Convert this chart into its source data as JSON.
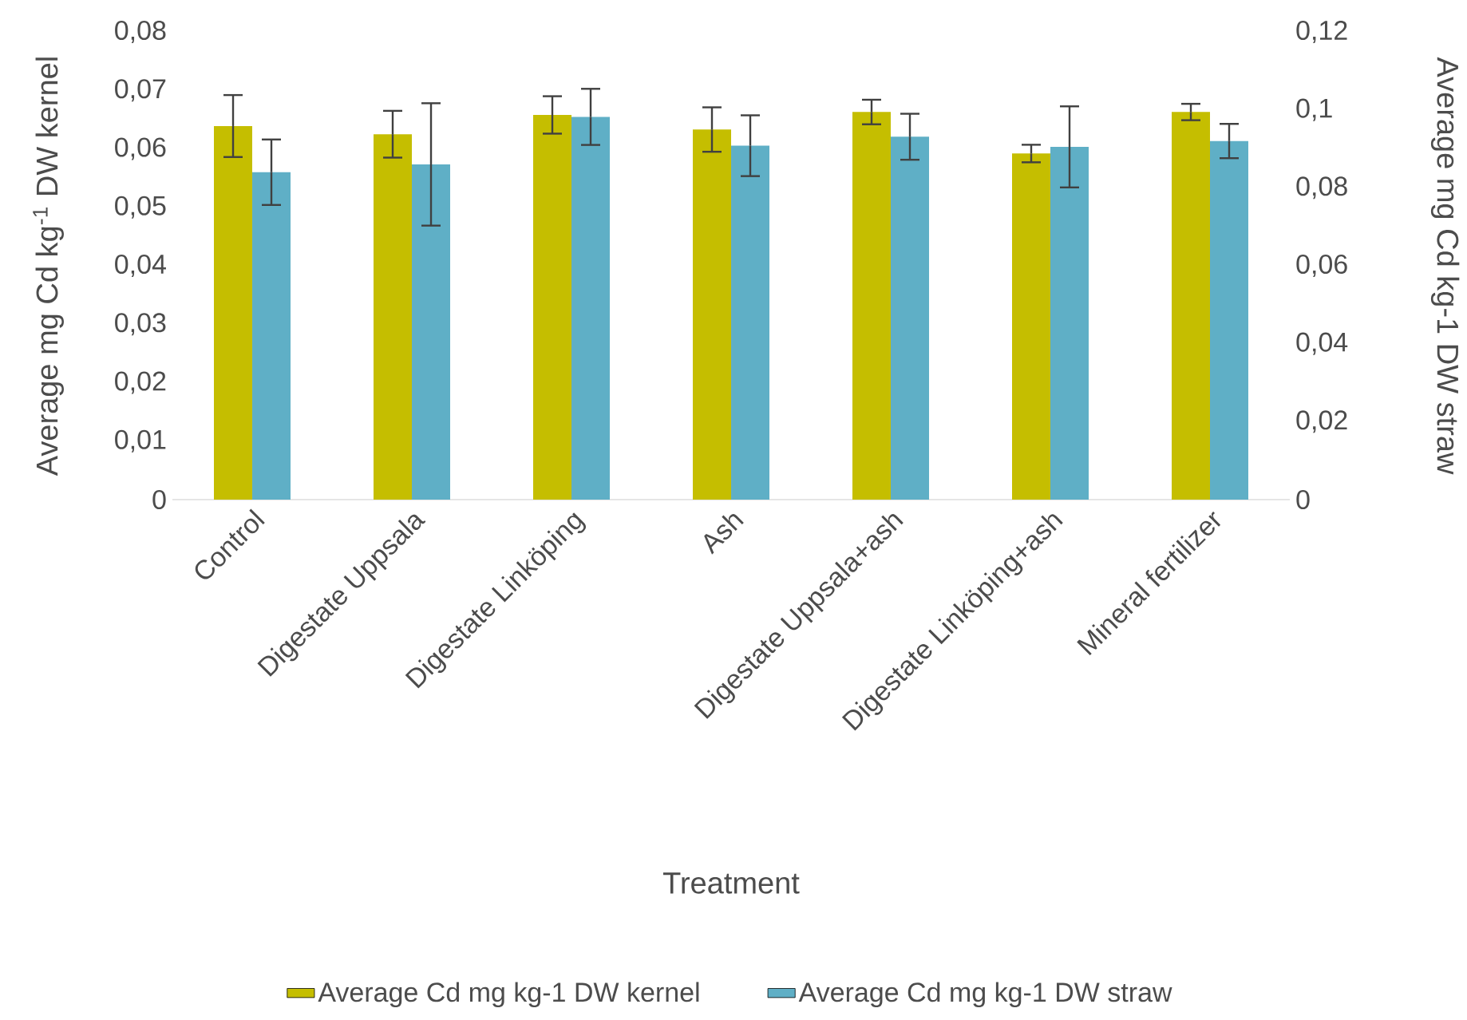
{
  "chart_data": {
    "type": "bar",
    "categories": [
      "Control",
      "Digestate Uppsala",
      "Digestate Linköping",
      "Ash",
      "Digestate Uppsala+ash",
      "Digestate Linköping+ash",
      "Mineral fertilizer"
    ],
    "xlabel": "Treatment",
    "ylabel": "Average mg Cd kg$^{-1}$ DW kernel",
    "y2label": "Average mg Cd kg-1 DW straw",
    "series": [
      {
        "name": "Average Cd mg kg-1 DW kernel",
        "color": "#c5be00",
        "values": [
          0.0639,
          0.0625,
          0.0658,
          0.0633,
          0.0663,
          0.0592,
          0.0663
        ],
        "errors": [
          0.0053,
          0.004,
          0.0032,
          0.0038,
          0.0021,
          0.0015,
          0.0014
        ]
      },
      {
        "name": "Average Cd mg kg-1 DW straw",
        "color": "#5fafc6",
        "axis": "y2",
        "values": [
          0.084,
          0.086,
          0.0982,
          0.0908,
          0.0931,
          0.0905,
          0.092
        ],
        "errors": [
          0.0084,
          0.0157,
          0.0072,
          0.0078,
          0.0059,
          0.0104,
          0.0044
        ]
      }
    ],
    "ylim": [
      0,
      0.08
    ],
    "yticks": [
      0,
      {
        "value": 0.01,
        "label": "0,01"
      },
      {
        "value": 0.02,
        "label": "0,02"
      },
      {
        "value": 0.03,
        "label": "0,03"
      },
      {
        "value": 0.04,
        "label": "0,04"
      },
      {
        "value": 0.05,
        "label": "0,05"
      },
      {
        "value": 0.06,
        "label": "0,06"
      },
      {
        "value": 0.07,
        "label": "0,07"
      },
      {
        "value": 0.08,
        "label": "0,08"
      }
    ],
    "y2lim": [
      0,
      0.12
    ],
    "y2ticks": [
      0,
      {
        "value": 0.02,
        "label": "0,02"
      },
      {
        "value": 0.04,
        "label": "0,04"
      },
      {
        "value": 0.06,
        "label": "0,06"
      },
      {
        "value": 0.08,
        "label": "0,08"
      },
      {
        "value": 0.1,
        "label": "0,1"
      },
      {
        "value": 0.12,
        "label": "0,12"
      }
    ],
    "legend": "bottom",
    "grid": false
  }
}
